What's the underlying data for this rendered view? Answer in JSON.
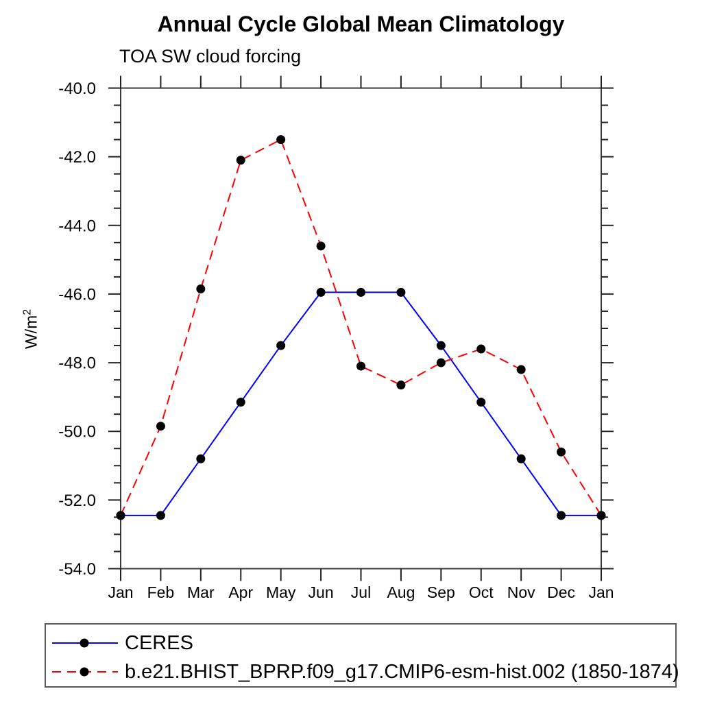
{
  "header": {
    "title": "Annual Cycle Global Mean Climatology",
    "subtitle": "TOA SW cloud forcing"
  },
  "chart_data": {
    "type": "line",
    "title": "Annual Cycle Global Mean Climatology",
    "subtitle": "TOA SW cloud forcing",
    "ylabel": "W/m²",
    "ylabel_base": "W/m",
    "ylabel_sup": "2",
    "xlabel": "",
    "x_categories": [
      "Jan",
      "Feb",
      "Mar",
      "Apr",
      "May",
      "Jun",
      "Jul",
      "Aug",
      "Sep",
      "Oct",
      "Nov",
      "Dec",
      "Jan"
    ],
    "ylim": [
      -54.0,
      -40.0
    ],
    "ytick_major_step": 2.0,
    "ytick_minor_step": 0.5,
    "ytick_labels": [
      "-40.0",
      "-42.0",
      "-44.0",
      "-46.0",
      "-48.0",
      "-50.0",
      "-52.0",
      "-54.0"
    ],
    "grid": false,
    "legend_position": "bottom",
    "series": [
      {
        "name": "CERES",
        "color": "#0000ff",
        "line_style": "solid",
        "marker": "circle",
        "marker_color": "#000000",
        "values": [
          -52.45,
          -52.45,
          -50.8,
          -49.15,
          -47.5,
          -45.95,
          -45.95,
          -45.95,
          -47.5,
          -49.15,
          -50.8,
          -52.45,
          -52.45
        ]
      },
      {
        "name": "b.e21.BHIST_BPRP.f09_g17.CMIP6-esm-hist.002 (1850-1874)",
        "color": "#ff0000",
        "line_style": "dashed",
        "marker": "circle",
        "marker_color": "#000000",
        "values": [
          -52.45,
          -49.85,
          -45.85,
          -42.1,
          -41.5,
          -44.6,
          -48.1,
          -48.65,
          -48.0,
          -47.6,
          -48.2,
          -50.6,
          -52.45
        ]
      }
    ]
  }
}
